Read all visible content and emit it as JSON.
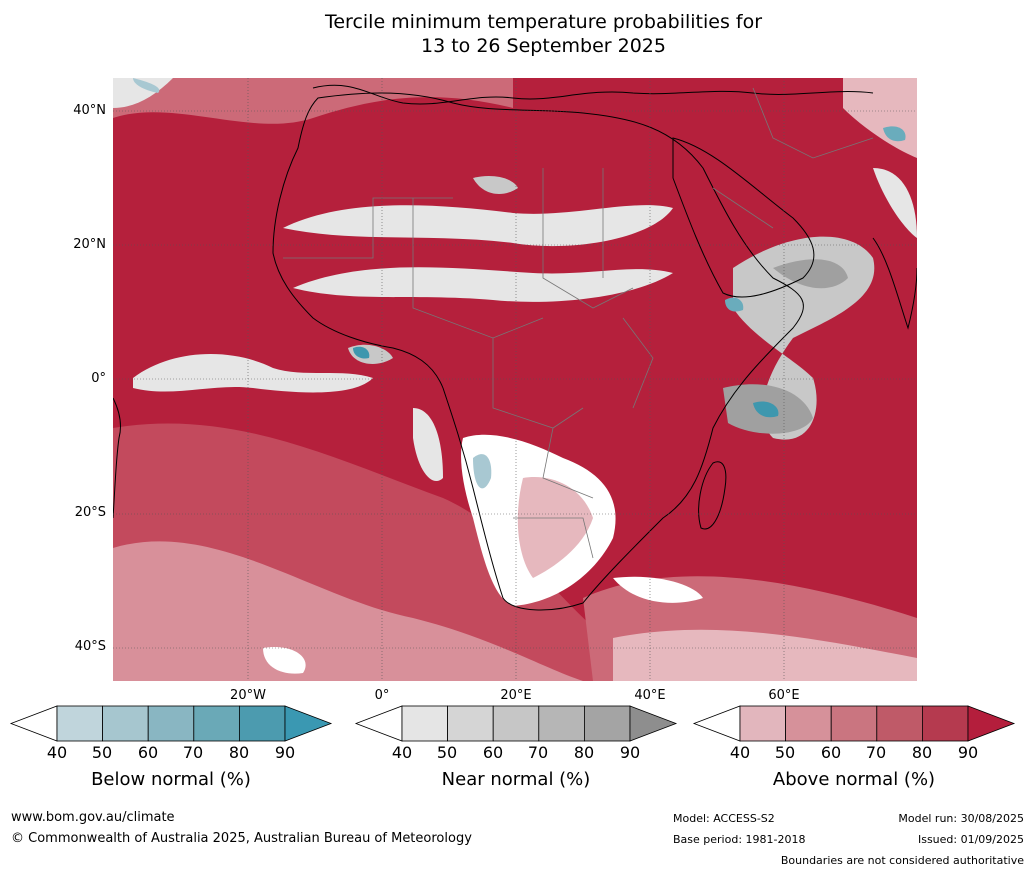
{
  "title_line1": "Tercile minimum temperature probabilities for",
  "title_line2": "13 to 26 September 2025",
  "map": {
    "lat_labels": [
      "40°N",
      "20°N",
      "0°",
      "20°S",
      "40°S"
    ],
    "lon_labels": [
      "20°W",
      "0°",
      "20°E",
      "40°E",
      "60°E"
    ],
    "colors": {
      "ocean_base": "#b5203c",
      "above_90": "#b5203c",
      "above_80": "#c34a5d",
      "above_70": "#cc6a78",
      "above_60": "#d8909a",
      "above_50": "#e6b8be",
      "near_40": "#e6e6e6",
      "near_60": "#c8c8c8",
      "near_80": "#a0a0a0",
      "below_50": "#a8c8d2",
      "below_70": "#6aacbc",
      "below_90": "#3e97ae",
      "white": "#ffffff"
    }
  },
  "colorbars": [
    {
      "name": "below",
      "ticks": [
        "40",
        "50",
        "60",
        "70",
        "80",
        "90"
      ],
      "colors": [
        "#c0d5dc",
        "#a6c6cf",
        "#89b6c2",
        "#6aa9b7",
        "#4c9baf",
        "#3a98b2"
      ],
      "title": "Below normal (%)"
    },
    {
      "name": "near",
      "ticks": [
        "40",
        "50",
        "60",
        "70",
        "80",
        "90"
      ],
      "colors": [
        "#e5e5e5",
        "#d5d5d5",
        "#c6c6c6",
        "#b6b6b6",
        "#a4a4a4",
        "#8e8e8e"
      ],
      "title": "Near normal (%)"
    },
    {
      "name": "above",
      "ticks": [
        "40",
        "50",
        "60",
        "70",
        "80",
        "90"
      ],
      "colors": [
        "#e2b6bd",
        "#d6919a",
        "#ca7580",
        "#bf5a68",
        "#b53a4f",
        "#b41e3c"
      ],
      "title": "Above normal (%)"
    }
  ],
  "footer": {
    "website": "www.bom.gov.au/climate",
    "copyright": "© Commonwealth of Australia 2025, Australian Bureau of Meteorology",
    "model": "Model: ACCESS-S2",
    "base_period": "Base period: 1981-2018",
    "model_run": "Model run: 30/08/2025",
    "issued": "Issued: 01/09/2025",
    "disclaimer": "Boundaries are not considered authoritative"
  }
}
